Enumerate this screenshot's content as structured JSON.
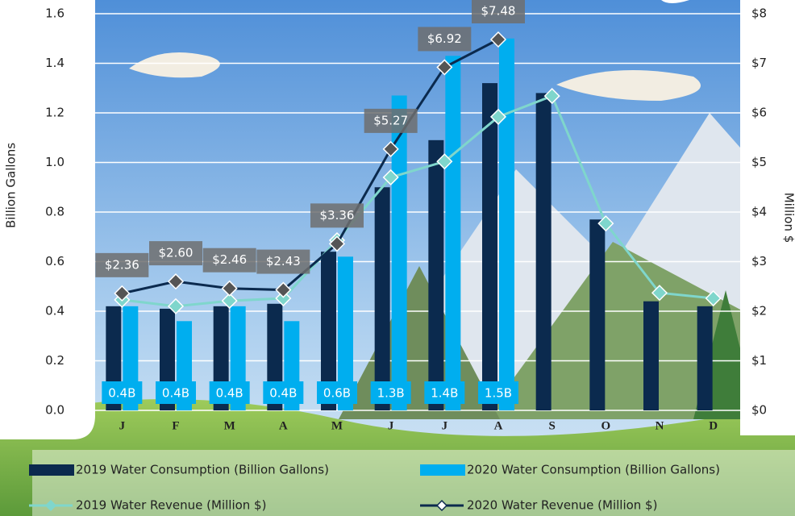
{
  "chart_data": {
    "type": "combo",
    "y_label": "Billion Gallons",
    "y2_label": "Million $",
    "categories": [
      "J",
      "F",
      "M",
      "A",
      "M",
      "J",
      "J",
      "A",
      "S",
      "O",
      "N",
      "D"
    ],
    "series": [
      {
        "name": "2019 Water Consumption (Billion Gallons)",
        "type": "bar",
        "color": "#0b2a4e",
        "values": [
          0.42,
          0.41,
          0.42,
          0.43,
          0.64,
          0.9,
          1.09,
          1.32,
          1.28,
          0.77,
          0.44,
          0.42
        ]
      },
      {
        "name": "2020 Water Consumption (Billion Gallons)",
        "type": "bar",
        "color": "#00aeef",
        "values": [
          0.42,
          0.36,
          0.42,
          0.36,
          0.62,
          1.27,
          1.43,
          1.5,
          null,
          null,
          null,
          null
        ],
        "value_labels": [
          "0.4B",
          "0.4B",
          "0.4B",
          "0.4B",
          "0.6B",
          "1.3B",
          "1.4B",
          "1.5B",
          null,
          null,
          null,
          null
        ]
      },
      {
        "name": "2019 Water Revenue (Million $)",
        "type": "line",
        "axis": "y2",
        "color": "#7fd6cc",
        "values": [
          2.23,
          2.1,
          2.21,
          2.26,
          3.43,
          4.7,
          5.02,
          5.92,
          6.34,
          3.77,
          2.37,
          2.26
        ]
      },
      {
        "name": "2020 Water Revenue (Million $)",
        "type": "line",
        "axis": "y2",
        "color": "#0b2a4e",
        "values": [
          2.36,
          2.6,
          2.46,
          2.43,
          3.36,
          5.27,
          6.92,
          7.48,
          null,
          null,
          null,
          null
        ],
        "value_labels": [
          "$2.36",
          "$2.60",
          "$2.46",
          "$2.43",
          "$3.36",
          "$5.27",
          "$6.92",
          "$7.48",
          null,
          null,
          null,
          null
        ]
      }
    ],
    "ylim": [
      0,
      1.6
    ],
    "yticks": [
      {
        "value": 0,
        "label": "0.0"
      },
      0.2,
      0.4,
      0.6,
      0.8,
      {
        "value": 1,
        "label": "1.0"
      },
      1.2,
      1.4,
      1.6
    ],
    "y2lim": [
      0,
      8
    ],
    "y2ticks": [
      {
        "value": 0,
        "label": "$0"
      },
      {
        "value": 1,
        "label": "$1"
      },
      {
        "value": 2,
        "label": "$2"
      },
      {
        "value": 3,
        "label": "$3"
      },
      {
        "value": 4,
        "label": "$4"
      },
      {
        "value": 5,
        "label": "$5"
      },
      {
        "value": 6,
        "label": "$6"
      },
      {
        "value": 7,
        "label": "$7"
      },
      {
        "value": 8,
        "label": "$8"
      }
    ],
    "grid": true
  }
}
